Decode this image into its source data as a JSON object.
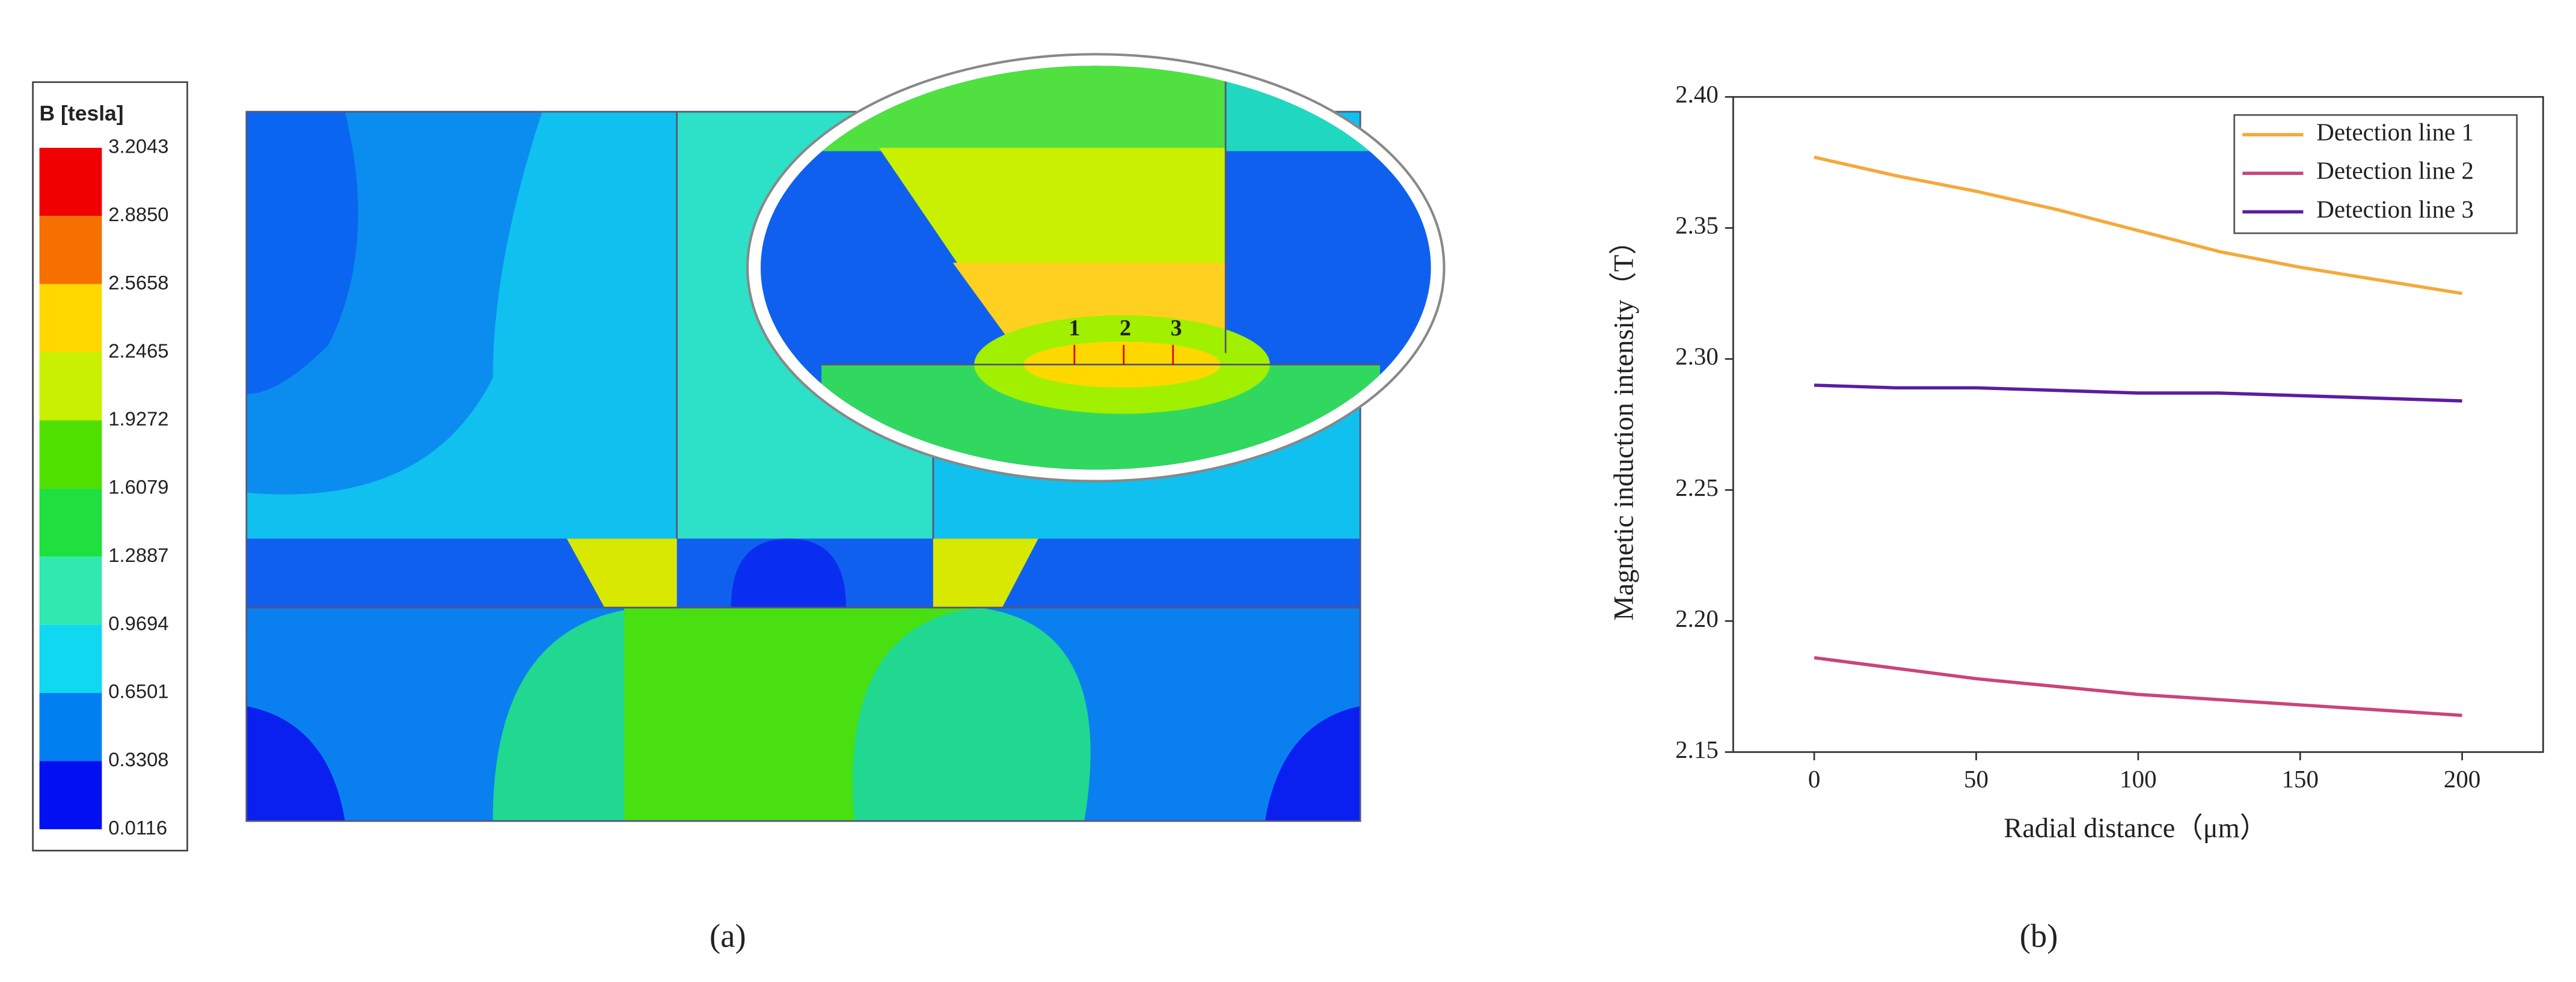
{
  "panel_a": {
    "colorbar": {
      "title": "B [tesla]",
      "labels": [
        "3.2043",
        "2.8850",
        "2.5658",
        "2.2465",
        "1.9272",
        "1.6079",
        "1.2887",
        "0.9694",
        "0.6501",
        "0.3308",
        "0.0116"
      ],
      "colors": [
        "#f00000",
        "#f57000",
        "#ffd800",
        "#c8f000",
        "#50e000",
        "#20e040",
        "#30e8b0",
        "#10d8f0",
        "#0080f0",
        "#0010f0"
      ]
    },
    "zoom_labels": [
      "1",
      "2",
      "3"
    ]
  },
  "captions": [
    "(a)",
    "(b)"
  ],
  "chart_data": {
    "type": "line",
    "x_label": "Radial distance（μm）",
    "y_label": "Magnetic induction intensity（T）",
    "x": [
      0,
      25,
      50,
      75,
      100,
      125,
      150,
      175,
      200
    ],
    "series": [
      {
        "name": "Detection line 1",
        "color": "#f5a93a",
        "values": [
          2.377,
          2.37,
          2.364,
          2.357,
          2.349,
          2.341,
          2.335,
          2.33,
          2.325
        ]
      },
      {
        "name": "Detection line 2",
        "color": "#c8457a",
        "values": [
          2.186,
          2.182,
          2.178,
          2.175,
          2.172,
          2.17,
          2.168,
          2.166,
          2.164
        ]
      },
      {
        "name": "Detection line 3",
        "color": "#5b1da0",
        "values": [
          2.29,
          2.289,
          2.289,
          2.288,
          2.287,
          2.287,
          2.286,
          2.285,
          2.284
        ]
      }
    ],
    "xlim": [
      -25,
      225
    ],
    "xticks": [
      0,
      50,
      100,
      150,
      200
    ],
    "ylim": [
      2.15,
      2.4
    ],
    "yticks": [
      {
        "value": 2.15,
        "label": "2.15"
      },
      {
        "value": 2.2,
        "label": "2.20"
      },
      {
        "value": 2.25,
        "label": "2.25"
      },
      {
        "value": 2.3,
        "label": "2.30"
      },
      {
        "value": 2.35,
        "label": "2.35"
      },
      {
        "value": 2.4,
        "label": "2.40"
      }
    ],
    "legend": "upper right"
  }
}
